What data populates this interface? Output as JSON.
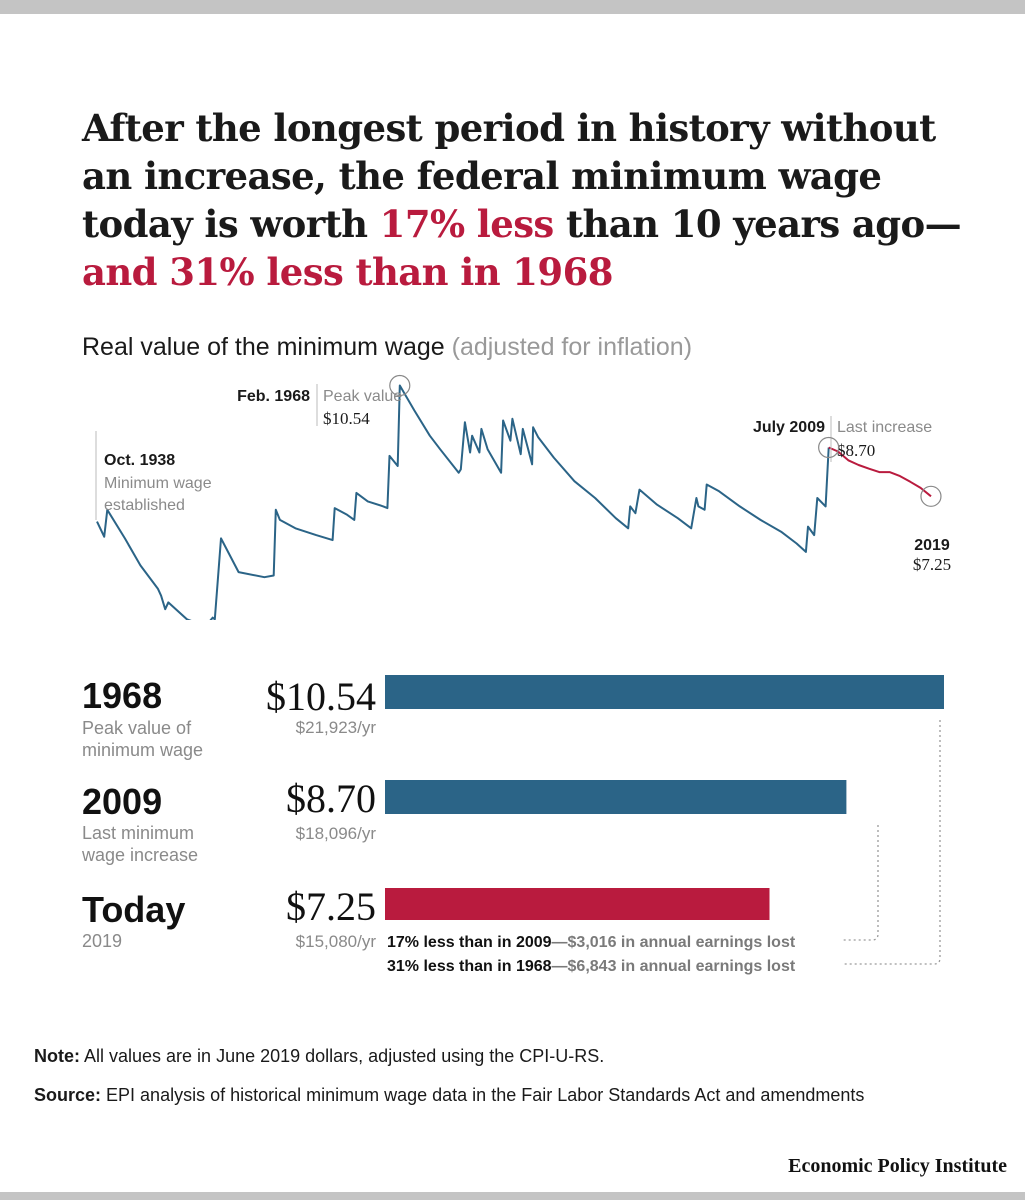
{
  "headline": {
    "part1": "After the longest period in history without an increase, the federal minimum wage today is worth ",
    "red1": "17% less",
    "part2": " than 10 years ago—",
    "red2": "and 31% less than in 1968"
  },
  "subtitle": {
    "main": "Real value of the minimum wage",
    "aside": "(adjusted for inflation)"
  },
  "colors": {
    "blue": "#2b6487",
    "red": "#b91b3e",
    "grey": "#8a8a8a"
  },
  "chart_data": [
    {
      "type": "line",
      "title": "Real value of the minimum wage (adjusted for inflation)",
      "units": "June 2019 dollars",
      "ylim": [
        3.4,
        11.0
      ],
      "xlim": [
        1938.8,
        2019.6
      ],
      "series": [
        {
          "color": "#2b6487",
          "x": [
            1938.8,
            1939.5,
            1939.8,
            1941.5,
            1943.0,
            1944.7,
            1945.0,
            1945.4,
            1945.7,
            1947.5,
            1948.8,
            1949.6,
            1950.0,
            1950.2,
            1950.8,
            1952.5,
            1955.0,
            1955.9,
            1956.1,
            1956.5,
            1958.0,
            1960.0,
            1961.6,
            1961.8,
            1963.0,
            1963.7,
            1963.9,
            1965.0,
            1966.5,
            1966.9,
            1967.1,
            1967.9,
            1968.1,
            1969.5,
            1971.0,
            1972.0,
            1973.8,
            1974.0,
            1974.4,
            1974.9,
            1975.1,
            1975.8,
            1976.0,
            1976.6,
            1977.9,
            1978.1,
            1978.8,
            1979.0,
            1979.8,
            1980.0,
            1980.9,
            1981.0,
            1981.5,
            1983.0,
            1985.0,
            1987.0,
            1989.0,
            1990.2,
            1990.4,
            1990.9,
            1991.3,
            1993.0,
            1995.0,
            1996.3,
            1996.8,
            1997.0,
            1997.6,
            1997.8,
            1999.0,
            2001.0,
            2003.0,
            2005.0,
            2006.5,
            2007.4,
            2007.6,
            2008.2,
            2008.5,
            2009.3,
            2009.6
          ],
          "y": [
            6.5,
            6.05,
            6.85,
            6.0,
            5.2,
            4.5,
            4.3,
            3.9,
            4.1,
            3.6,
            3.45,
            3.5,
            3.65,
            3.6,
            6.0,
            5.0,
            4.85,
            4.9,
            6.85,
            6.55,
            6.3,
            6.1,
            5.95,
            6.9,
            6.7,
            6.55,
            7.35,
            7.1,
            6.95,
            6.9,
            8.45,
            8.15,
            10.54,
            9.8,
            9.05,
            8.65,
            7.95,
            8.05,
            9.45,
            8.55,
            9.05,
            8.55,
            9.25,
            8.65,
            7.95,
            9.5,
            8.9,
            9.55,
            8.5,
            9.25,
            8.2,
            9.3,
            9.0,
            8.4,
            7.7,
            7.2,
            6.6,
            6.3,
            6.95,
            6.75,
            7.45,
            7.0,
            6.6,
            6.3,
            7.2,
            6.95,
            6.85,
            7.6,
            7.4,
            6.95,
            6.55,
            6.2,
            5.85,
            5.6,
            6.35,
            6.1,
            7.2,
            6.95,
            8.7
          ]
        },
        {
          "color": "#b91b3e",
          "x": [
            2009.6,
            2010.5,
            2011.5,
            2012.5,
            2013.5,
            2014.5,
            2015.5,
            2016.5,
            2017.5,
            2018.5,
            2019.5
          ],
          "y": [
            8.7,
            8.58,
            8.32,
            8.18,
            8.07,
            7.97,
            7.97,
            7.85,
            7.68,
            7.5,
            7.25
          ]
        }
      ],
      "annotations": [
        {
          "date": "Oct. 1938",
          "label": "Minimum wage established"
        },
        {
          "date": "Feb. 1968",
          "label": "Peak value",
          "value": "$10.54"
        },
        {
          "date": "July 2009",
          "label": "Last increase",
          "value": "$8.70"
        },
        {
          "date": "2019",
          "value": "$7.25"
        }
      ]
    },
    {
      "type": "bar",
      "orientation": "horizontal",
      "categories": [
        "1968",
        "2009",
        "Today"
      ],
      "values": [
        10.54,
        8.7,
        7.25
      ],
      "xlim": [
        0,
        10.54
      ],
      "colors": [
        "#2b6487",
        "#2b6487",
        "#b91b3e"
      ],
      "rows": [
        {
          "year": "1968",
          "desc1": "Peak value of",
          "desc2": "minimum wage",
          "value": "$10.54",
          "annual": "$21,923/yr"
        },
        {
          "year": "2009",
          "desc1": "Last minimum",
          "desc2": "wage increase",
          "value": "$8.70",
          "annual": "$18,096/yr"
        },
        {
          "year": "Today",
          "desc1": "2019",
          "desc2": "",
          "value": "$7.25",
          "annual": "$15,080/yr"
        }
      ],
      "losses": [
        {
          "bold": "17% less than in 2009",
          "rest": "—$3,016 in annual earnings lost"
        },
        {
          "bold": "31% less than in 1968",
          "rest": "—$6,843 in annual earnings lost"
        }
      ]
    }
  ],
  "note": {
    "label": "Note:",
    "text": " All values are in June 2019 dollars, adjusted using the CPI-U-RS."
  },
  "source": {
    "label": "Source:",
    "text": " EPI analysis of historical minimum wage data in the Fair Labor Standards Act and amendments"
  },
  "brand": "Economic Policy Institute"
}
